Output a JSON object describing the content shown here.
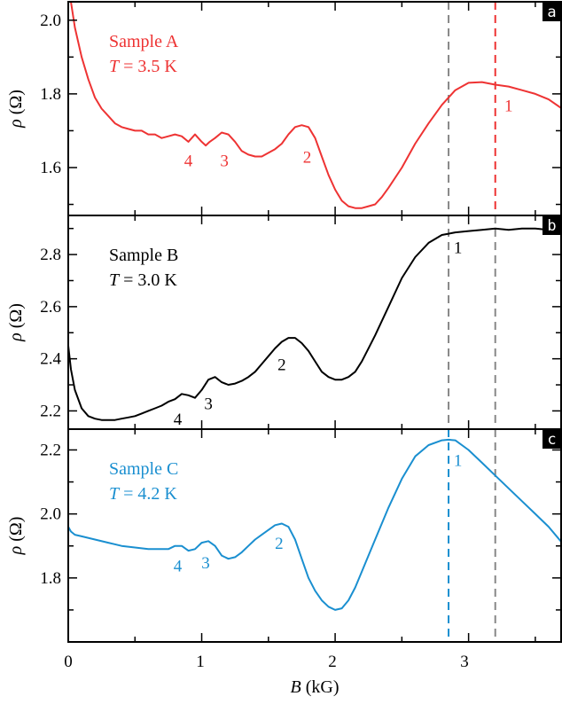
{
  "chart_data": [
    {
      "type": "line",
      "panel_label": "a",
      "annotation": {
        "sample": "Sample A",
        "temperature_var": "T",
        "temperature_value": " = 3.5 K"
      },
      "color": "#ee3333",
      "xlim": [
        0,
        3.7
      ],
      "ylim": [
        1.47,
        2.05
      ],
      "yticks": [
        1.6,
        1.8,
        2.0
      ],
      "ytick_labels": [
        "1.6",
        "1.8",
        "2.0"
      ],
      "ylabel": {
        "symbol": "ρ",
        "unit": " (Ω)"
      },
      "series": [
        {
          "x": [
            0.02,
            0.05,
            0.1,
            0.15,
            0.2,
            0.25,
            0.3,
            0.35,
            0.4,
            0.45,
            0.5,
            0.55,
            0.6,
            0.65,
            0.7,
            0.75,
            0.8,
            0.85,
            0.9,
            0.95,
            1.0,
            1.03,
            1.06,
            1.1,
            1.15,
            1.2,
            1.25,
            1.3,
            1.35,
            1.4,
            1.45,
            1.5,
            1.55,
            1.6,
            1.65,
            1.7,
            1.75,
            1.8,
            1.85,
            1.9,
            1.95,
            2.0,
            2.05,
            2.1,
            2.15,
            2.2,
            2.25,
            2.3,
            2.35,
            2.4,
            2.5,
            2.6,
            2.7,
            2.8,
            2.9,
            3.0,
            3.1,
            3.2,
            3.3,
            3.4,
            3.5,
            3.6,
            3.7
          ],
          "y": [
            2.05,
            1.98,
            1.9,
            1.84,
            1.79,
            1.76,
            1.74,
            1.72,
            1.71,
            1.705,
            1.7,
            1.7,
            1.69,
            1.69,
            1.68,
            1.685,
            1.69,
            1.685,
            1.67,
            1.69,
            1.67,
            1.66,
            1.67,
            1.68,
            1.695,
            1.69,
            1.67,
            1.645,
            1.635,
            1.63,
            1.63,
            1.64,
            1.65,
            1.665,
            1.69,
            1.71,
            1.715,
            1.71,
            1.68,
            1.63,
            1.58,
            1.54,
            1.51,
            1.495,
            1.49,
            1.49,
            1.495,
            1.5,
            1.52,
            1.545,
            1.6,
            1.665,
            1.72,
            1.77,
            1.81,
            1.83,
            1.832,
            1.825,
            1.82,
            1.81,
            1.8,
            1.785,
            1.76
          ]
        }
      ],
      "peak_labels": [
        {
          "text": "1",
          "x": 3.3,
          "y": 1.77
        },
        {
          "text": "2",
          "x": 1.79,
          "y": 1.63
        },
        {
          "text": "3",
          "x": 1.17,
          "y": 1.62
        },
        {
          "text": "4",
          "x": 0.9,
          "y": 1.62
        }
      ],
      "vlines": [
        {
          "x": 2.85,
          "color": "#888888"
        },
        {
          "x": 3.2,
          "color": "#ee3333"
        }
      ]
    },
    {
      "type": "line",
      "panel_label": "b",
      "annotation": {
        "sample": "Sample B",
        "temperature_var": "T",
        "temperature_value": " = 3.0 K"
      },
      "color": "#000000",
      "xlim": [
        0,
        3.7
      ],
      "ylim": [
        2.13,
        2.95
      ],
      "yticks": [
        2.2,
        2.4,
        2.6,
        2.8
      ],
      "ytick_labels": [
        "2.2",
        "2.4",
        "2.6",
        "2.8"
      ],
      "ylabel": {
        "symbol": "ρ",
        "unit": " (Ω)"
      },
      "series": [
        {
          "x": [
            0.0,
            0.02,
            0.05,
            0.1,
            0.15,
            0.2,
            0.25,
            0.3,
            0.35,
            0.4,
            0.45,
            0.5,
            0.55,
            0.6,
            0.65,
            0.7,
            0.75,
            0.8,
            0.85,
            0.9,
            0.95,
            1.0,
            1.05,
            1.1,
            1.15,
            1.2,
            1.25,
            1.3,
            1.35,
            1.4,
            1.45,
            1.5,
            1.55,
            1.6,
            1.65,
            1.7,
            1.75,
            1.8,
            1.85,
            1.9,
            1.95,
            2.0,
            2.05,
            2.1,
            2.15,
            2.2,
            2.25,
            2.3,
            2.4,
            2.5,
            2.6,
            2.7,
            2.8,
            2.85,
            2.9,
            3.0,
            3.1,
            3.2,
            3.3,
            3.4,
            3.5,
            3.6,
            3.7
          ],
          "y": [
            2.45,
            2.36,
            2.28,
            2.21,
            2.18,
            2.17,
            2.165,
            2.165,
            2.165,
            2.17,
            2.175,
            2.18,
            2.19,
            2.2,
            2.21,
            2.22,
            2.235,
            2.245,
            2.265,
            2.26,
            2.25,
            2.28,
            2.32,
            2.33,
            2.31,
            2.3,
            2.305,
            2.315,
            2.33,
            2.35,
            2.38,
            2.41,
            2.44,
            2.465,
            2.48,
            2.48,
            2.46,
            2.43,
            2.39,
            2.35,
            2.33,
            2.32,
            2.32,
            2.33,
            2.35,
            2.39,
            2.44,
            2.49,
            2.6,
            2.71,
            2.79,
            2.845,
            2.875,
            2.88,
            2.885,
            2.89,
            2.895,
            2.9,
            2.895,
            2.9,
            2.9,
            2.895,
            2.92
          ]
        }
      ],
      "peak_labels": [
        {
          "text": "1",
          "x": 2.92,
          "y": 2.83
        },
        {
          "text": "2",
          "x": 1.6,
          "y": 2.38
        },
        {
          "text": "3",
          "x": 1.05,
          "y": 2.23
        },
        {
          "text": "4",
          "x": 0.82,
          "y": 2.17
        }
      ],
      "vlines": [
        {
          "x": 2.85,
          "color": "#888888"
        },
        {
          "x": 3.2,
          "color": "#888888"
        }
      ]
    },
    {
      "type": "line",
      "panel_label": "c",
      "annotation": {
        "sample": "Sample C",
        "temperature_var": "T",
        "temperature_value": " = 4.2 K"
      },
      "color": "#1a8fd0",
      "xlim": [
        0,
        3.7
      ],
      "ylim": [
        1.6,
        2.265
      ],
      "yticks": [
        1.8,
        2.0,
        2.2
      ],
      "ytick_labels": [
        "1.8",
        "2.0",
        "2.2"
      ],
      "ylabel": {
        "symbol": "ρ",
        "unit": " (Ω)"
      },
      "xticks": [
        0,
        1,
        2,
        3
      ],
      "xtick_labels": [
        "0",
        "1",
        "2",
        "3"
      ],
      "xlabel": {
        "symbol": "B",
        "unit": " (kG)"
      },
      "series": [
        {
          "x": [
            0.0,
            0.02,
            0.05,
            0.1,
            0.2,
            0.3,
            0.4,
            0.5,
            0.6,
            0.7,
            0.75,
            0.8,
            0.85,
            0.9,
            0.95,
            1.0,
            1.05,
            1.1,
            1.15,
            1.2,
            1.25,
            1.3,
            1.35,
            1.4,
            1.45,
            1.5,
            1.55,
            1.6,
            1.65,
            1.7,
            1.75,
            1.8,
            1.85,
            1.9,
            1.95,
            2.0,
            2.05,
            2.1,
            2.15,
            2.2,
            2.3,
            2.4,
            2.5,
            2.6,
            2.7,
            2.8,
            2.85,
            2.9,
            3.0,
            3.1,
            3.2,
            3.3,
            3.4,
            3.5,
            3.6,
            3.7
          ],
          "y": [
            1.96,
            1.945,
            1.935,
            1.93,
            1.92,
            1.91,
            1.9,
            1.895,
            1.89,
            1.89,
            1.89,
            1.9,
            1.9,
            1.885,
            1.89,
            1.91,
            1.915,
            1.9,
            1.87,
            1.86,
            1.865,
            1.88,
            1.9,
            1.92,
            1.935,
            1.95,
            1.965,
            1.97,
            1.96,
            1.92,
            1.86,
            1.8,
            1.76,
            1.73,
            1.71,
            1.7,
            1.705,
            1.73,
            1.77,
            1.82,
            1.92,
            2.02,
            2.11,
            2.18,
            2.215,
            2.23,
            2.232,
            2.23,
            2.2,
            2.16,
            2.12,
            2.08,
            2.04,
            2.0,
            1.96,
            1.91
          ]
        }
      ],
      "peak_labels": [
        {
          "text": "1",
          "x": 2.92,
          "y": 2.17
        },
        {
          "text": "2",
          "x": 1.58,
          "y": 1.91
        },
        {
          "text": "3",
          "x": 1.03,
          "y": 1.85
        },
        {
          "text": "4",
          "x": 0.82,
          "y": 1.84
        }
      ],
      "vlines": [
        {
          "x": 2.85,
          "color": "#1a8fd0"
        },
        {
          "x": 3.2,
          "color": "#888888"
        }
      ]
    }
  ]
}
